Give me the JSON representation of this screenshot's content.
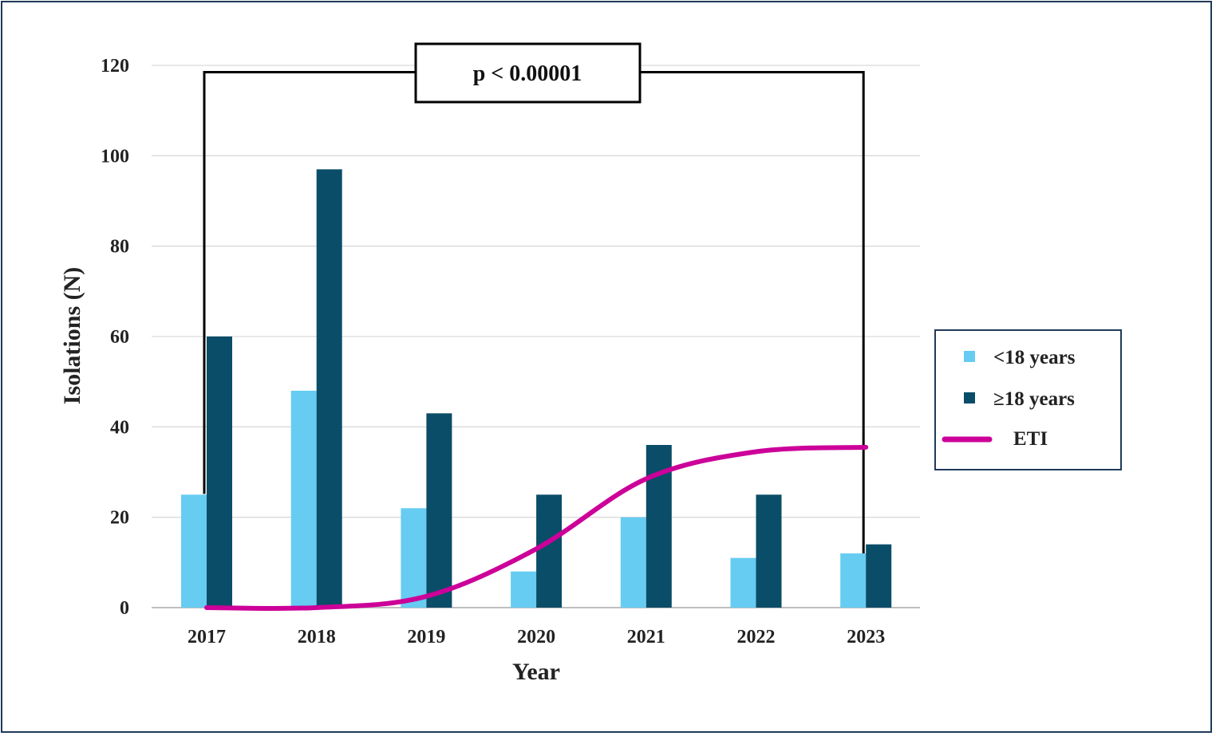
{
  "chart_data": {
    "type": "bar",
    "title": "",
    "xlabel": "Year",
    "ylabel": "Isolations (N)",
    "ylim": [
      0,
      120
    ],
    "yticks": [
      0,
      20,
      40,
      60,
      80,
      100,
      120
    ],
    "grid": true,
    "legend_position": "right",
    "categories": [
      "2017",
      "2018",
      "2019",
      "2020",
      "2021",
      "2022",
      "2023"
    ],
    "series": [
      {
        "name": "<18 years",
        "kind": "bar",
        "color": "#66ccf2",
        "values": [
          25,
          48,
          22,
          8,
          20,
          11,
          12
        ]
      },
      {
        "name": "≥18 years",
        "kind": "bar",
        "color": "#0a4d68",
        "values": [
          60,
          97,
          43,
          25,
          36,
          25,
          14
        ]
      },
      {
        "name": "ETI",
        "kind": "line",
        "color": "#cc0099",
        "values": [
          0,
          0,
          2.5,
          13,
          28.5,
          34.5,
          35.5
        ]
      }
    ],
    "annotation": {
      "text": "p < 0.00001",
      "bracket_from": "2017",
      "bracket_to": "2023",
      "bracket_level": 118.5
    }
  }
}
